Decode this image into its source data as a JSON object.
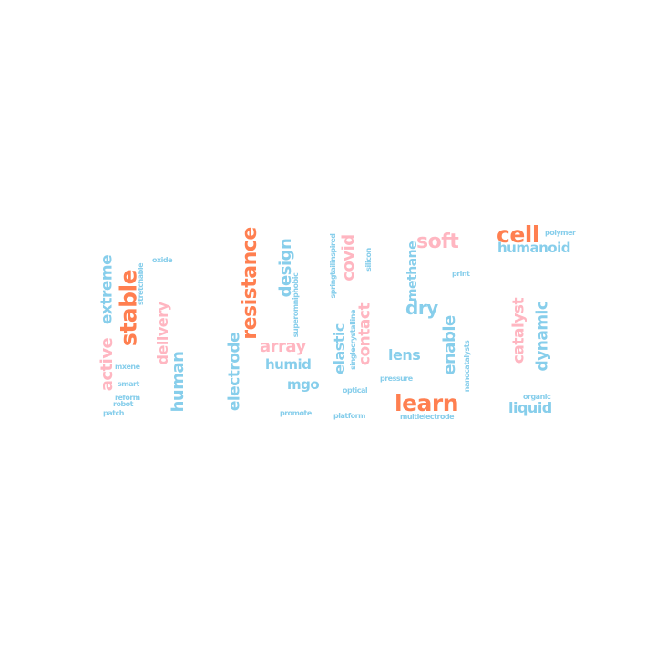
{
  "palette": {
    "blue": "#87ceeb",
    "orange": "#ff7f50",
    "pink": "#ffb6c1"
  },
  "words": [
    {
      "text": "cell",
      "color": "orange"
    },
    {
      "text": "polymer",
      "color": "blue"
    },
    {
      "text": "humanoid",
      "color": "blue"
    },
    {
      "text": "soft",
      "color": "pink"
    },
    {
      "text": "methane",
      "color": "blue"
    },
    {
      "text": "print",
      "color": "blue"
    },
    {
      "text": "silicon",
      "color": "blue"
    },
    {
      "text": "springtailinspired",
      "color": "blue"
    },
    {
      "text": "covid",
      "color": "pink"
    },
    {
      "text": "design",
      "color": "blue"
    },
    {
      "text": "resistance",
      "color": "orange"
    },
    {
      "text": "extreme",
      "color": "blue"
    },
    {
      "text": "stable",
      "color": "orange"
    },
    {
      "text": "oxide",
      "color": "blue"
    },
    {
      "text": "stretchable",
      "color": "blue"
    },
    {
      "text": "delivery",
      "color": "pink"
    },
    {
      "text": "superomniphobic",
      "color": "blue"
    },
    {
      "text": "dry",
      "color": "blue"
    },
    {
      "text": "catalyst",
      "color": "pink"
    },
    {
      "text": "dynamic",
      "color": "blue"
    },
    {
      "text": "contact",
      "color": "pink"
    },
    {
      "text": "elastic",
      "color": "blue"
    },
    {
      "text": "singlecrystalline",
      "color": "blue"
    },
    {
      "text": "array",
      "color": "pink"
    },
    {
      "text": "enable",
      "color": "blue"
    },
    {
      "text": "lens",
      "color": "blue"
    },
    {
      "text": "nanocatalysts",
      "color": "blue"
    },
    {
      "text": "active",
      "color": "pink"
    },
    {
      "text": "human",
      "color": "blue"
    },
    {
      "text": "electrode",
      "color": "blue"
    },
    {
      "text": "humid",
      "color": "blue"
    },
    {
      "text": "pressure",
      "color": "blue"
    },
    {
      "text": "mxene",
      "color": "blue"
    },
    {
      "text": "smart",
      "color": "blue"
    },
    {
      "text": "mgo",
      "color": "blue"
    },
    {
      "text": "optical",
      "color": "blue"
    },
    {
      "text": "reform",
      "color": "blue"
    },
    {
      "text": "robot",
      "color": "blue"
    },
    {
      "text": "organic",
      "color": "blue"
    },
    {
      "text": "learn",
      "color": "orange"
    },
    {
      "text": "liquid",
      "color": "blue"
    },
    {
      "text": "patch",
      "color": "blue"
    },
    {
      "text": "promote",
      "color": "blue"
    },
    {
      "text": "platform",
      "color": "blue"
    },
    {
      "text": "multielectrode",
      "color": "blue"
    }
  ]
}
